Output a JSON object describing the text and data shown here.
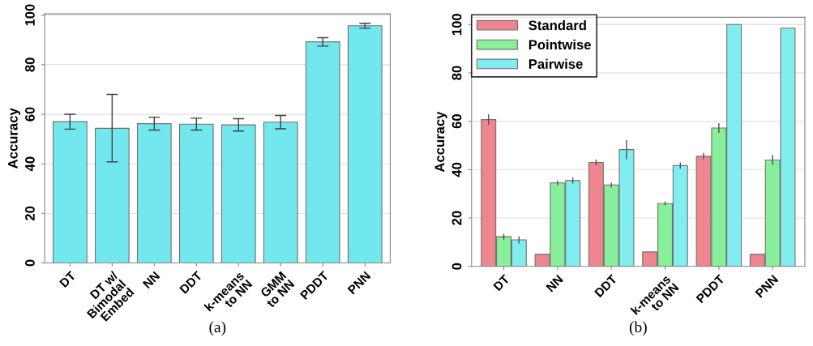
{
  "chart_data": [
    {
      "type": "bar",
      "ylabel": "Accuracy",
      "categories": [
        "DT",
        "DT w/\nBimodal\nEmbed",
        "NN",
        "DDT",
        "k-means\nto NN",
        "GMM\nto NN",
        "PDDT",
        "PNN"
      ],
      "values": [
        57,
        54.3,
        56.2,
        56,
        55.7,
        56.8,
        89.2,
        95.7
      ],
      "errors": [
        3,
        [
          40.8,
          68
        ],
        2.6,
        2.4,
        2.5,
        2.7,
        1.7,
        1
      ],
      "color": "#72e8ee",
      "ylim": [
        0,
        100.5
      ],
      "yticks": [
        0,
        20,
        40,
        60,
        80,
        100
      ],
      "grid": "y",
      "annotations": [
        "(a)"
      ]
    },
    {
      "type": "bar",
      "ylabel": "Accuracy",
      "categories": [
        "DT",
        "NN",
        "DDT",
        "k-means\nto NN",
        "PDDT",
        "PNN"
      ],
      "series": [
        {
          "name": "Standard",
          "color": "#ee858f",
          "values": [
            60.7,
            5,
            43,
            6,
            45.6,
            5
          ],
          "errors": [
            2.2,
            null,
            1.2,
            null,
            1.3,
            null
          ]
        },
        {
          "name": "Pointwise",
          "color": "#88f09a",
          "values": [
            12.3,
            34.5,
            33.7,
            26,
            57.2,
            44
          ],
          "errors": [
            1.2,
            1,
            1,
            0.8,
            2,
            2
          ]
        },
        {
          "name": "Pairwise",
          "color": "#80eef0",
          "values": [
            11,
            35.5,
            48.3,
            41.7,
            100,
            98.5
          ],
          "errors": [
            1.5,
            1.2,
            4,
            1.3,
            null,
            null
          ]
        }
      ],
      "ylim": [
        0,
        103
      ],
      "yticks": [
        0,
        20,
        40,
        60,
        80,
        100
      ],
      "grid": "y",
      "legend": "top left",
      "annotations": [
        "(b)"
      ]
    }
  ]
}
